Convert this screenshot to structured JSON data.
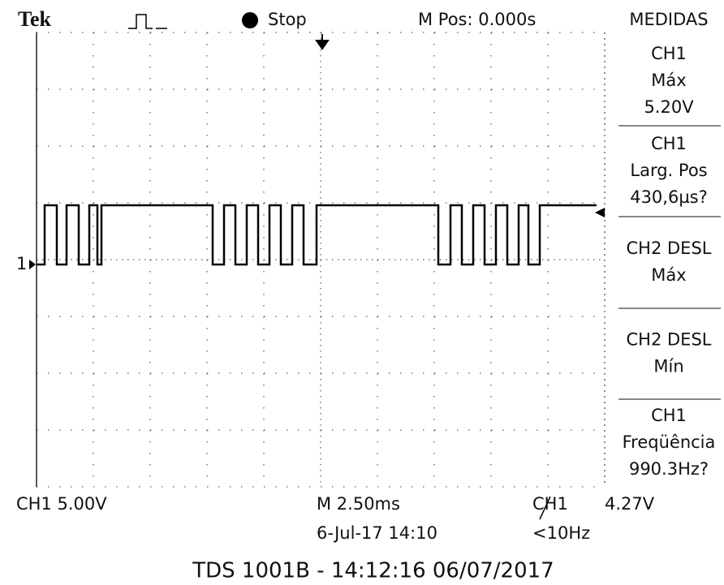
{
  "header": {
    "brand": "Tek",
    "state": "Stop",
    "position": "M Pos: 0.000s",
    "panel_title": "MEDIDAS"
  },
  "measurements": [
    [
      "CH1",
      "Máx",
      "5.20V"
    ],
    [
      "CH1",
      "Larg. Pos",
      "430,6µs?"
    ],
    [
      "CH2 DESL",
      "Máx"
    ],
    [
      "CH2 DESL",
      "Mín"
    ],
    [
      "CH1",
      "Freqüência",
      "990.3Hz?"
    ]
  ],
  "channel_marker": "1",
  "footer": {
    "ch1_scale": "CH1  5.00V",
    "timebase": "M 2.50ms",
    "trigger_source": "CH1",
    "trigger_level": "4.27V",
    "date": "6-Jul-17 14:10",
    "frequency": "<10Hz"
  },
  "caption": "TDS 1001B - 14:12:16   06/07/2017"
}
